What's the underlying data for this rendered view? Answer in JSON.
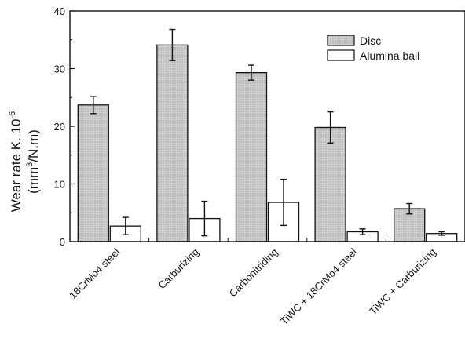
{
  "chart_data": {
    "type": "bar",
    "categories": [
      "18CrMo4 steel",
      "Carburizing",
      "Carbonitriding",
      "TiWC + 18CrMo4 steel",
      "TiWC + Carburizing"
    ],
    "series": [
      {
        "name": "Disc",
        "values": [
          23.7,
          34.1,
          29.3,
          19.8,
          5.7
        ],
        "errors": [
          1.5,
          2.7,
          1.3,
          2.7,
          0.9
        ],
        "color": "#c8c8c8",
        "hatched": true
      },
      {
        "name": "Alumina ball",
        "values": [
          2.7,
          4.0,
          6.8,
          1.7,
          1.4
        ],
        "errors": [
          1.5,
          3.0,
          4.0,
          0.5,
          0.3
        ],
        "color": "#ffffff",
        "hatched": false
      }
    ],
    "ylabel_line1": "Wear rate  K. 10",
    "ylabel_line1_sup": "-6",
    "ylabel_line2_pre": "(mm",
    "ylabel_line2_sup": "3",
    "ylabel_line2_post": "/N.m)",
    "xlabel": "",
    "ylim": [
      0,
      40
    ],
    "yticks": [
      0,
      10,
      20,
      30,
      40
    ],
    "legend_position": "top-right",
    "grid": false
  }
}
